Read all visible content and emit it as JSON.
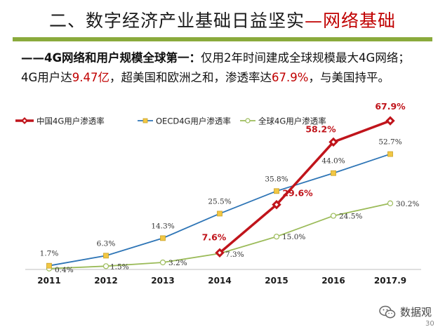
{
  "slide": {
    "title_main": "二、数字经济产业基础日益坚实",
    "title_accent": "—网络基础",
    "lead_bold": "——4G网络和用户规模全球第一：",
    "lead_rest": "仅用2年时间建成全球规模最大4G网络；",
    "line2_a": "4G用户达",
    "line2_num1": "9.47亿",
    "line2_b": "，超美国和欧洲之和，渗透率达",
    "line2_num2": "67.9%",
    "line2_c": "，与美国持平。",
    "footer_brand": "数据观",
    "page_number": "30"
  },
  "colors": {
    "china": "#c0141b",
    "oecd": "#2e75b6",
    "global": "#9bbb59",
    "title_bar": "#8aaa3c",
    "accent": "#c00000"
  },
  "chart_data": {
    "type": "line",
    "title": "",
    "xlabel": "",
    "ylabel": "",
    "categories": [
      "2011",
      "2012",
      "2013",
      "2014",
      "2015",
      "2016",
      "2017.9"
    ],
    "ylim": [
      0,
      75
    ],
    "grid": false,
    "legend_position": "top-left",
    "series": [
      {
        "name": "中国4G用户渗透率",
        "key": "china",
        "values": [
          null,
          null,
          null,
          7.6,
          29.6,
          58.2,
          67.9
        ],
        "labels": [
          null,
          null,
          null,
          "7.6%",
          "29.6%",
          "58.2%",
          "67.9%"
        ]
      },
      {
        "name": "OECD4G用户渗透率",
        "key": "oecd",
        "values": [
          1.7,
          6.3,
          14.3,
          25.5,
          35.8,
          44.0,
          52.7
        ],
        "labels": [
          "1.7%",
          "6.3%",
          "14.3%",
          "25.5%",
          "35.8%",
          "44.0%",
          "52.7%"
        ]
      },
      {
        "name": "全球4G用户渗透率",
        "key": "global",
        "values": [
          0.4,
          1.5,
          3.2,
          7.3,
          15.0,
          24.5,
          30.2
        ],
        "labels": [
          "0.4%",
          "1.5%",
          "3.2%",
          "7.3%",
          "15.0%",
          "24.5%",
          "30.2%"
        ]
      }
    ]
  }
}
